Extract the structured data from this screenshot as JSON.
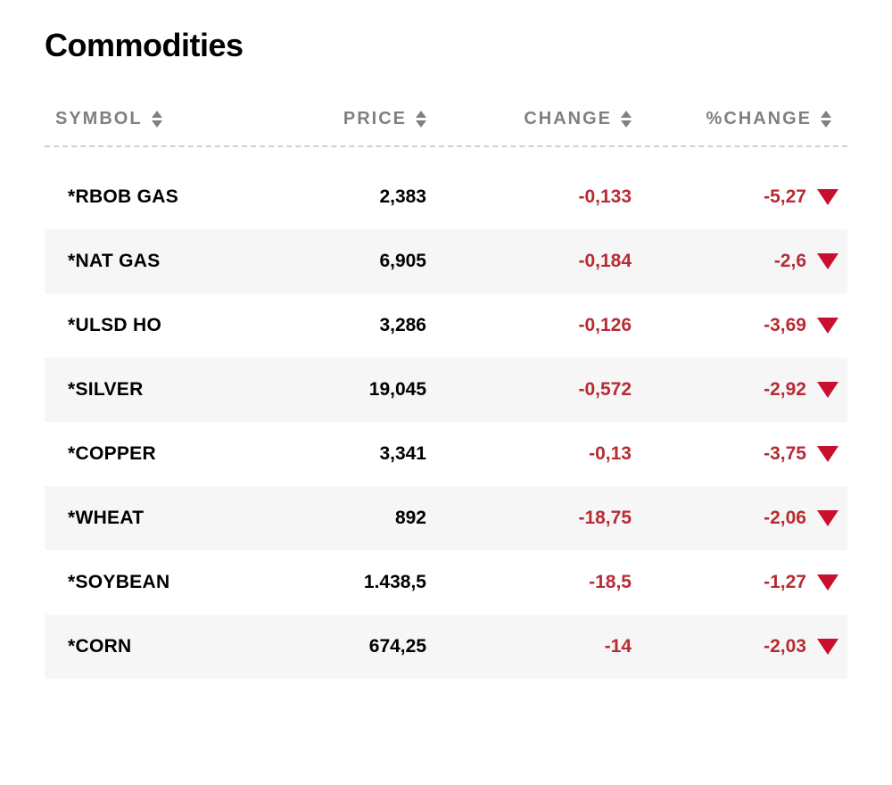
{
  "title": "Commodities",
  "columns": {
    "symbol": "SYMBOL",
    "price": "PRICE",
    "change": "CHANGE",
    "pct_change": "%CHANGE"
  },
  "colors": {
    "header_text": "#808080",
    "negative_text": "#b72b34",
    "triangle": "#c8102e",
    "stripe_bg": "#f6f6f6",
    "divider": "#d0d0d0",
    "background": "#ffffff"
  },
  "rows": [
    {
      "symbol": "*RBOB GAS",
      "price": "2,383",
      "change": "-0,133",
      "pct": "-5,27",
      "direction": "down"
    },
    {
      "symbol": "*NAT GAS",
      "price": "6,905",
      "change": "-0,184",
      "pct": "-2,6",
      "direction": "down"
    },
    {
      "symbol": "*ULSD HO",
      "price": "3,286",
      "change": "-0,126",
      "pct": "-3,69",
      "direction": "down"
    },
    {
      "symbol": "*SILVER",
      "price": "19,045",
      "change": "-0,572",
      "pct": "-2,92",
      "direction": "down"
    },
    {
      "symbol": "*COPPER",
      "price": "3,341",
      "change": "-0,13",
      "pct": "-3,75",
      "direction": "down"
    },
    {
      "symbol": "*WHEAT",
      "price": "892",
      "change": "-18,75",
      "pct": "-2,06",
      "direction": "down"
    },
    {
      "symbol": "*SOYBEAN",
      "price": "1.438,5",
      "change": "-18,5",
      "pct": "-1,27",
      "direction": "down"
    },
    {
      "symbol": "*CORN",
      "price": "674,25",
      "change": "-14",
      "pct": "-2,03",
      "direction": "down"
    }
  ]
}
